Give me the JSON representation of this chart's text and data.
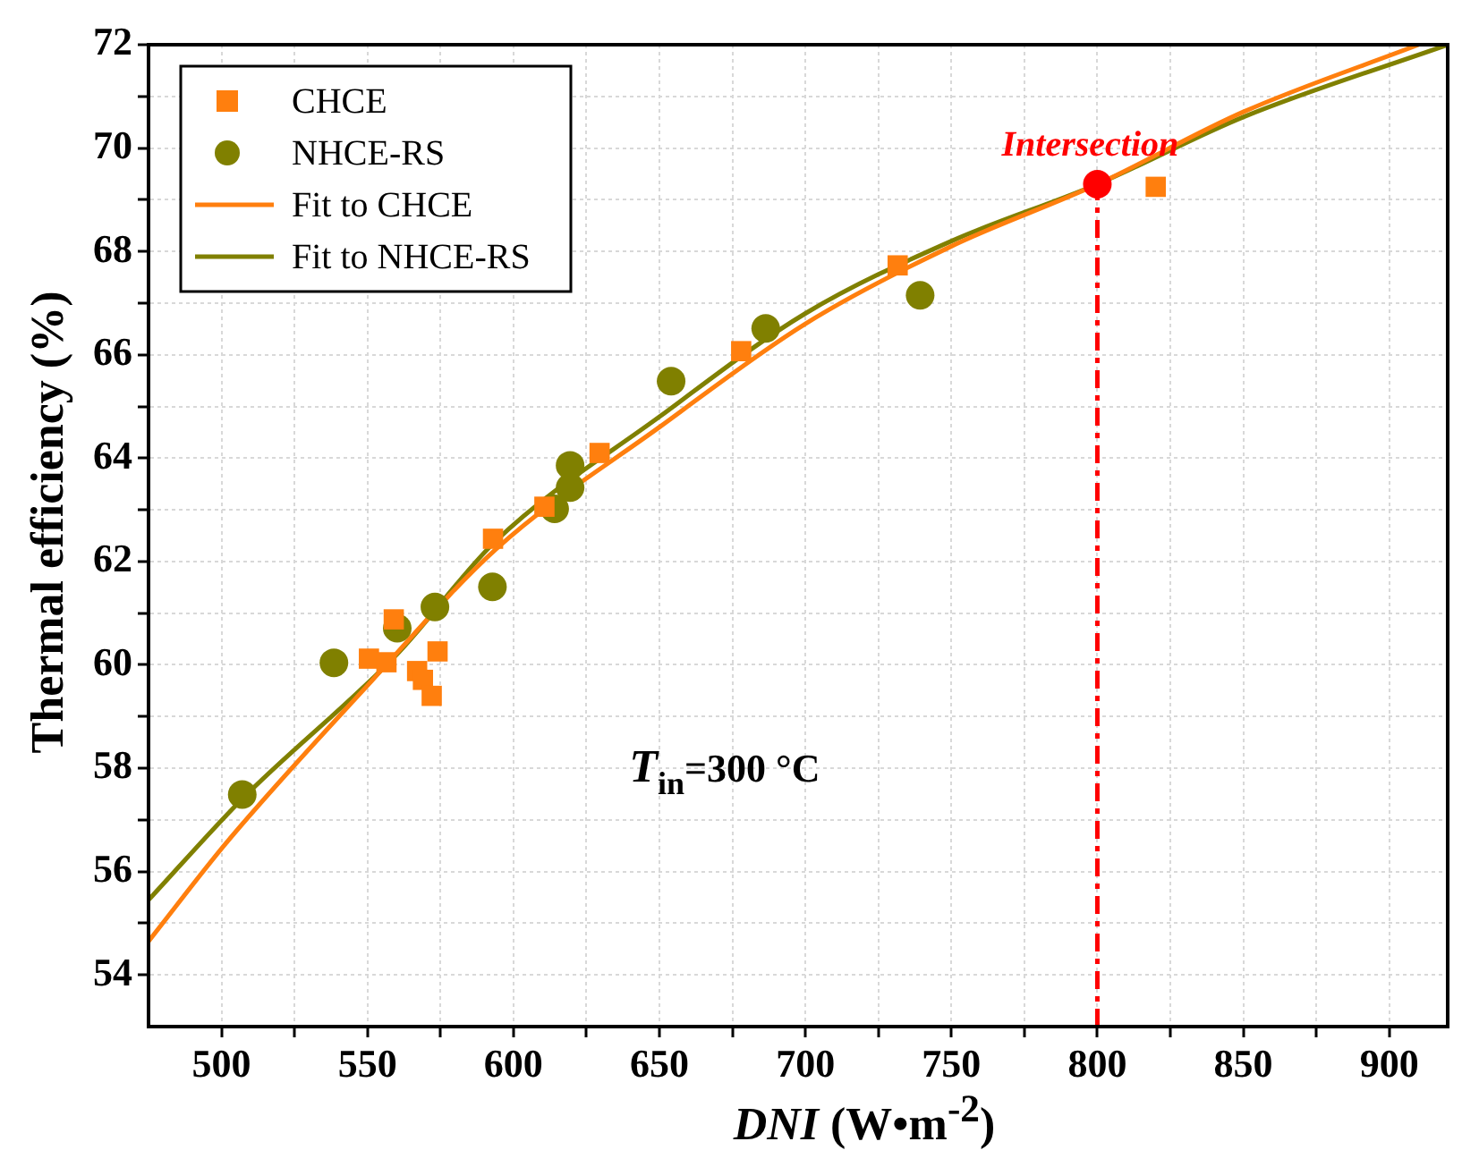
{
  "chart_data": {
    "type": "scatter",
    "xlabel": "DNI (W•m$^{-2}$)",
    "ylabel": "Thermal efficiency (%)",
    "xlim": [
      475,
      920
    ],
    "ylim": [
      53,
      72
    ],
    "xticks": [
      500,
      {
        "value": 525,
        "label": null
      },
      550,
      {
        "value": 575,
        "label": null
      },
      600,
      {
        "value": 625,
        "label": null
      },
      650,
      {
        "value": 675,
        "label": null
      },
      700,
      {
        "value": 725,
        "label": null
      },
      750,
      {
        "value": 775,
        "label": null
      },
      800,
      {
        "value": 825,
        "label": null
      },
      850,
      {
        "value": 875,
        "label": null
      },
      900
    ],
    "yticks": [
      54,
      {
        "value": 55,
        "label": null
      },
      56,
      {
        "value": 57,
        "label": null
      },
      58,
      {
        "value": 59,
        "label": null
      },
      60,
      {
        "value": 61,
        "label": null
      },
      62,
      {
        "value": 63,
        "label": null
      },
      64,
      {
        "value": 65,
        "label": null
      },
      66,
      {
        "value": 67,
        "label": null
      },
      68,
      {
        "value": 69,
        "label": null
      },
      70,
      {
        "value": 71,
        "label": null
      },
      72
    ],
    "grid": true,
    "legend": "top left",
    "series": [
      {
        "name": "CHCE",
        "type": "scatter",
        "marker": "square",
        "color": "#ff7f0e",
        "x": [
          550.5,
          556.5,
          559,
          567,
          569,
          572,
          574,
          593,
          610.6,
          629.5,
          678,
          731.6,
          820
        ],
        "values": [
          60.12,
          60.05,
          60.88,
          59.88,
          59.71,
          59.4,
          60.26,
          62.44,
          63.06,
          64.1,
          66.07,
          67.73,
          69.25
        ]
      },
      {
        "name": "NHCE-RS",
        "type": "scatter",
        "marker": "circle",
        "color": "#808000",
        "x": [
          507.1,
          538.5,
          560.2,
          573.1,
          592.8,
          614.1,
          619.4,
          619.4,
          654,
          686.4,
          739.3
        ],
        "values": [
          57.49,
          60.04,
          60.71,
          61.12,
          61.51,
          63.02,
          63.43,
          63.86,
          65.49,
          66.51,
          67.15
        ]
      },
      {
        "name": "Fit to CHCE",
        "type": "line",
        "marker": "none",
        "color": "#ff7f0e",
        "x": [
          475,
          502,
          550,
          594,
          650,
          700,
          750,
          800,
          850,
          910
        ],
        "values": [
          54.65,
          56.58,
          59.6,
          62.24,
          64.6,
          66.6,
          68.1,
          69.3,
          70.7,
          72
        ]
      },
      {
        "name": "Fit to NHCE-RS",
        "type": "line",
        "marker": "none",
        "color": "#808000",
        "x": [
          475,
          507,
          560,
          594,
          650,
          700,
          750,
          800,
          850,
          920
        ],
        "values": [
          55.45,
          57.4,
          60.2,
          62.4,
          64.8,
          66.8,
          68.2,
          69.3,
          70.6,
          72
        ]
      },
      {
        "type": "scatter",
        "marker": "circle",
        "color": "#ff0000",
        "x": [
          800
        ],
        "values": [
          69.3
        ]
      }
    ],
    "ref_lines": [
      {
        "axis": "x",
        "value": 800,
        "color": "#ff0000",
        "line_style": "dashed"
      }
    ],
    "annotations": [
      {
        "text": "Intersection",
        "x": 800,
        "y": 69.3
      },
      "T$_{in}$=300 °C"
    ]
  }
}
